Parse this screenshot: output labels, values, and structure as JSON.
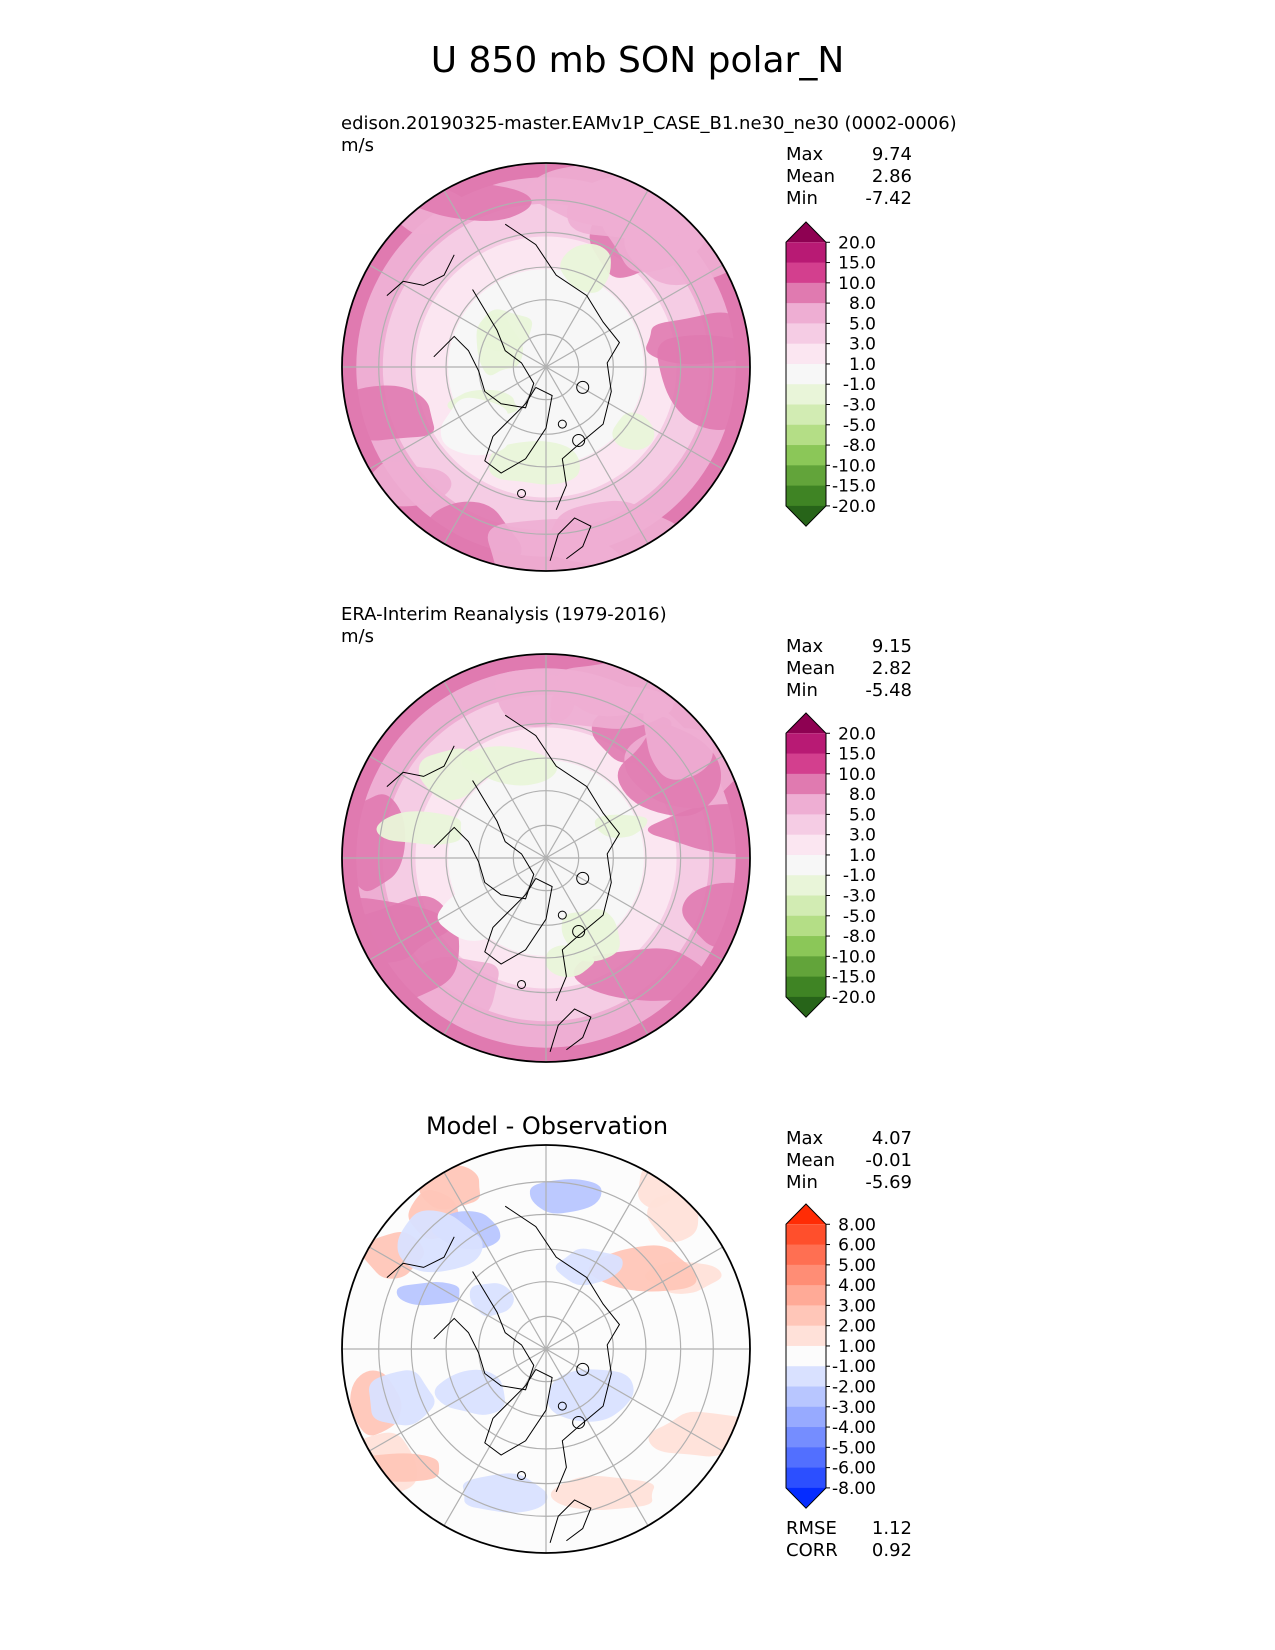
{
  "title": "U 850 mb SON polar_N",
  "panels": [
    {
      "name": "test",
      "title": "edison.20190325-master.EAMv1P_CASE_B1.ne30_ne30 (0002-0006)",
      "units": "m/s",
      "stats": [
        {
          "label": "Max",
          "value": "9.74"
        },
        {
          "label": "Mean",
          "value": "2.86"
        },
        {
          "label": "Min",
          "value": "-7.42"
        }
      ],
      "colorbar": {
        "labels": [
          "20.0",
          "15.0",
          "10.0",
          "8.0",
          "5.0",
          "3.0",
          "1.0",
          "-1.0",
          "-3.0",
          "-5.0",
          "-8.0",
          "-10.0",
          "-15.0",
          "-20.0"
        ],
        "colors": [
          "#8e0152",
          "#b81a74",
          "#d33f8e",
          "#e07ab0",
          "#eeaed3",
          "#f5cce4",
          "#fbe6f1",
          "#f7f7f7",
          "#e9f5d9",
          "#d2ecb3",
          "#b4de86",
          "#8bc758",
          "#62a43a",
          "#3f8424",
          "#276419"
        ]
      }
    },
    {
      "name": "reference",
      "title": "ERA-Interim Reanalysis (1979-2016)",
      "units": "m/s",
      "stats": [
        {
          "label": "Max",
          "value": "9.15"
        },
        {
          "label": "Mean",
          "value": "2.82"
        },
        {
          "label": "Min",
          "value": "-5.48"
        }
      ],
      "colorbar": {
        "labels": [
          "20.0",
          "15.0",
          "10.0",
          "8.0",
          "5.0",
          "3.0",
          "1.0",
          "-1.0",
          "-3.0",
          "-5.0",
          "-8.0",
          "-10.0",
          "-15.0",
          "-20.0"
        ],
        "colors": [
          "#8e0152",
          "#b81a74",
          "#d33f8e",
          "#e07ab0",
          "#eeaed3",
          "#f5cce4",
          "#fbe6f1",
          "#f7f7f7",
          "#e9f5d9",
          "#d2ecb3",
          "#b4de86",
          "#8bc758",
          "#62a43a",
          "#3f8424",
          "#276419"
        ]
      }
    },
    {
      "name": "difference",
      "title": "Model - Observation",
      "units": "",
      "stats": [
        {
          "label": "Max",
          "value": "4.07"
        },
        {
          "label": "Mean",
          "value": "-0.01"
        },
        {
          "label": "Min",
          "value": "-5.69"
        }
      ],
      "extra_stats": [
        {
          "label": "RMSE",
          "value": "1.12"
        },
        {
          "label": "CORR",
          "value": "0.92"
        }
      ],
      "colorbar": {
        "labels": [
          "8.00",
          "6.00",
          "5.00",
          "4.00",
          "3.00",
          "2.00",
          "1.00",
          "-1.00",
          "-2.00",
          "-3.00",
          "-4.00",
          "-5.00",
          "-6.00",
          "-8.00"
        ],
        "colors": [
          "#ff2c05",
          "#ff4f2c",
          "#ff6f52",
          "#ff8d75",
          "#ffaa97",
          "#ffc6b8",
          "#ffe1d9",
          "#fcfcfc",
          "#d9e1ff",
          "#b8c6ff",
          "#97aaff",
          "#758dff",
          "#526fff",
          "#2c4fff",
          "#052cff"
        ]
      }
    }
  ]
}
